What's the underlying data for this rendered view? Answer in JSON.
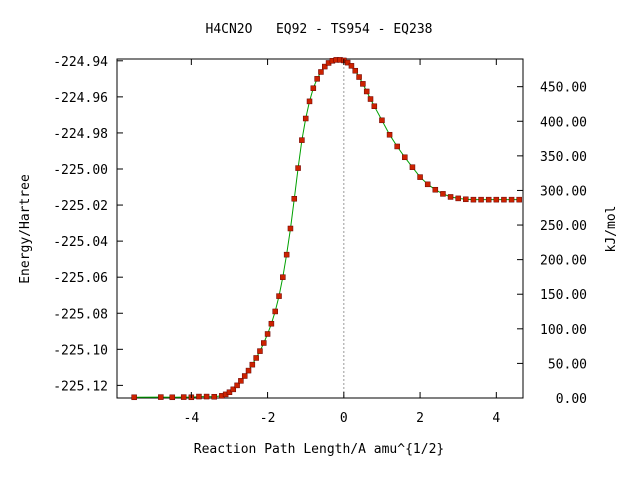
{
  "chart_data": {
    "type": "line",
    "title": "H4CN2O   EQ92 - TS954 - EQ238",
    "xlabel": "Reaction Path Length/A amu^{1/2}",
    "ylabel_left": "Energy/Hartree",
    "ylabel_right": "kJ/mol",
    "xlim": [
      -5.95,
      4.7
    ],
    "ylim_left": [
      -225.127,
      -224.939
    ],
    "ylim_right": [
      0,
      490
    ],
    "x_ticks": [
      -4,
      -2,
      0,
      2,
      4
    ],
    "x_tick_labels": [
      "-4",
      "-2",
      "0",
      "2",
      "4"
    ],
    "y_left_ticks": [
      -224.94,
      -224.96,
      -224.98,
      -225.0,
      -225.02,
      -225.04,
      -225.06,
      -225.08,
      -225.1,
      -225.12
    ],
    "y_left_tick_labels": [
      "-224.94",
      "-224.96",
      "-224.98",
      "-225.00",
      "-225.02",
      "-225.04",
      "-225.06",
      "-225.08",
      "-225.10",
      "-225.12"
    ],
    "y_right_ticks": [
      0,
      50,
      100,
      150,
      200,
      250,
      300,
      350,
      400,
      450
    ],
    "y_right_tick_labels": [
      "0.00",
      "50.00",
      "100.00",
      "150.00",
      "200.00",
      "250.00",
      "300.00",
      "350.00",
      "400.00",
      "450.00"
    ],
    "ts_marker_x": 0,
    "colors": {
      "line": "#00a000",
      "points": "#cc2200",
      "ts_line": "#999999"
    },
    "series": [
      {
        "x": [
          -5.5,
          -4.8,
          -4.5,
          -4.2,
          -4.0,
          -3.8,
          -3.6,
          -3.4,
          -3.2,
          -3.1,
          -3.0,
          -2.9,
          -2.8,
          -2.7,
          -2.6,
          -2.5,
          -2.4,
          -2.3,
          -2.2,
          -2.1,
          -2.0,
          -1.9,
          -1.8,
          -1.7,
          -1.6,
          -1.5,
          -1.4,
          -1.3,
          -1.2,
          -1.1,
          -1.0,
          -0.9,
          -0.8,
          -0.7,
          -0.6,
          -0.5,
          -0.4,
          -0.3,
          -0.2,
          -0.1,
          0.0,
          0.1,
          0.2,
          0.3,
          0.4,
          0.5,
          0.6,
          0.7,
          0.8,
          1.0,
          1.2,
          1.4,
          1.6,
          1.8,
          2.0,
          2.2,
          2.4,
          2.6,
          2.8,
          3.0,
          3.2,
          3.4,
          3.6,
          3.8,
          4.0,
          4.2,
          4.4,
          4.6
        ],
        "y": [
          -225.1266,
          -225.1265,
          -225.1266,
          -225.1265,
          -225.1266,
          -225.1262,
          -225.1262,
          -225.1263,
          -225.1258,
          -225.125,
          -225.1238,
          -225.1222,
          -225.12,
          -225.1175,
          -225.1148,
          -225.1118,
          -225.1085,
          -225.1048,
          -225.101,
          -225.0965,
          -225.0915,
          -225.0858,
          -225.079,
          -225.0705,
          -225.06,
          -225.0475,
          -225.033,
          -225.0165,
          -224.9995,
          -224.984,
          -224.972,
          -224.9625,
          -224.9552,
          -224.95,
          -224.9462,
          -224.9432,
          -224.9412,
          -224.94,
          -224.9395,
          -224.9395,
          -224.9398,
          -224.941,
          -224.9428,
          -224.9455,
          -224.949,
          -224.9528,
          -224.957,
          -224.9612,
          -224.9652,
          -224.973,
          -224.981,
          -224.9875,
          -224.9935,
          -224.999,
          -225.0045,
          -225.0085,
          -225.0115,
          -225.0138,
          -225.0155,
          -225.0163,
          -225.0168,
          -225.017,
          -225.017,
          -225.017,
          -225.017,
          -225.017,
          -225.017,
          -225.017
        ]
      }
    ]
  }
}
